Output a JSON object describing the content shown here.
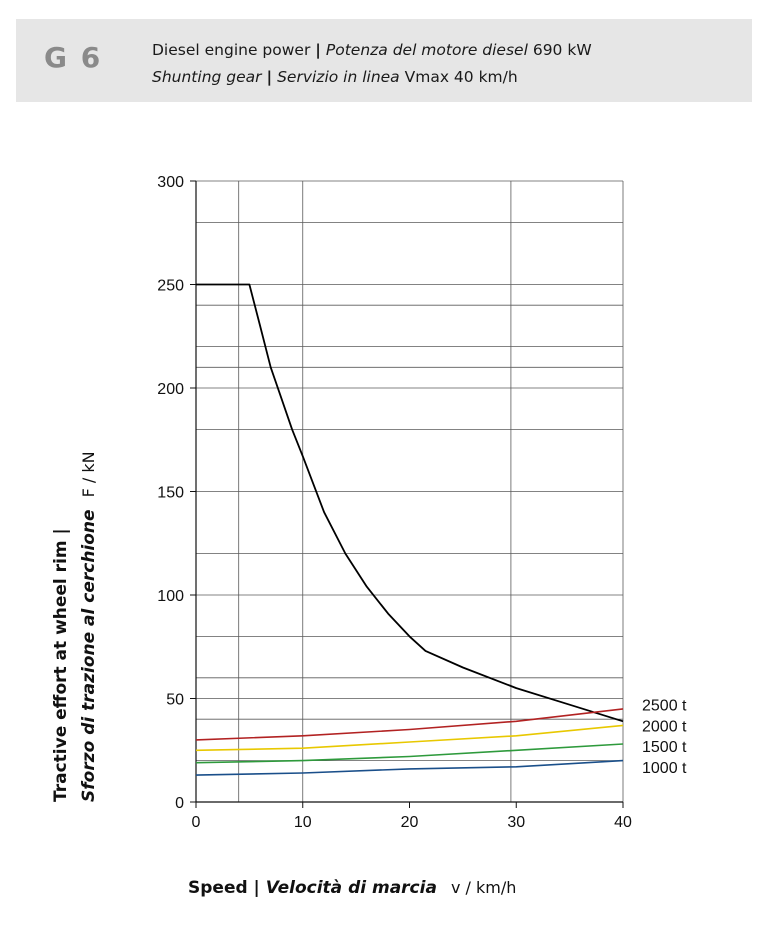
{
  "header": {
    "code": "G 6",
    "line1_a": "Diesel engine power",
    "line1_sep": "|",
    "line1_b": "Potenza del motore diesel",
    "line1_c": "690 kW",
    "line2_a": "Shunting gear",
    "line2_sep": "|",
    "line2_b": "Servizio in linea",
    "line2_c": "Vmax 40 km/h"
  },
  "chart_data": {
    "type": "line",
    "xlim": [
      0,
      40
    ],
    "ylim": [
      0,
      300
    ],
    "x_ticks": [
      "0",
      "10",
      "20",
      "30",
      "40"
    ],
    "y_ticks": [
      "0",
      "50",
      "100",
      "150",
      "200",
      "250",
      "300"
    ],
    "xlabel_bold": "Speed | ",
    "xlabel_italic": "Velocità di marcia",
    "xlabel_unit": "v / km/h",
    "ylabel_bold": "Tractive effort at wheel rim |",
    "ylabel_italic": "Sforzo di trazione al cerchione",
    "ylabel_unit": "F / kN",
    "grid": true,
    "grid_x": [
      4,
      10,
      29.5,
      40
    ],
    "grid_y": [
      0,
      20,
      40,
      50,
      60,
      80,
      100,
      120,
      150,
      180,
      200,
      210,
      220,
      240,
      250,
      280,
      300
    ],
    "series": [
      {
        "name": "",
        "color": "#000000",
        "x": [
          0,
          4.5,
          5,
          6,
          7,
          8,
          9,
          10,
          12,
          14,
          16,
          18,
          20,
          21.5,
          25,
          30,
          35,
          40
        ],
        "y": [
          250,
          250,
          250,
          230,
          210,
          195,
          180,
          167,
          140,
          120,
          104,
          91,
          80,
          73,
          65,
          55,
          47,
          39
        ]
      },
      {
        "name": "2500 t",
        "color": "#b22222",
        "x": [
          0,
          10,
          20,
          30,
          40
        ],
        "y": [
          30,
          32,
          35,
          39,
          45
        ]
      },
      {
        "name": "2000 t",
        "color": "#e8c800",
        "x": [
          0,
          10,
          20,
          30,
          40
        ],
        "y": [
          25,
          26,
          29,
          32,
          37
        ]
      },
      {
        "name": "1500 t",
        "color": "#2e9a3c",
        "x": [
          0,
          10,
          20,
          30,
          40
        ],
        "y": [
          19,
          20,
          22,
          25,
          28
        ]
      },
      {
        "name": "1000 t",
        "color": "#1a4f8a",
        "x": [
          0,
          10,
          20,
          30,
          40
        ],
        "y": [
          13,
          14,
          16,
          17,
          20
        ]
      }
    ],
    "legend_labels": [
      {
        "text": "2500 t",
        "y": 47
      },
      {
        "text": "2000 t",
        "y": 37
      },
      {
        "text": "1500 t",
        "y": 27
      },
      {
        "text": "1000 t",
        "y": 17
      }
    ]
  }
}
